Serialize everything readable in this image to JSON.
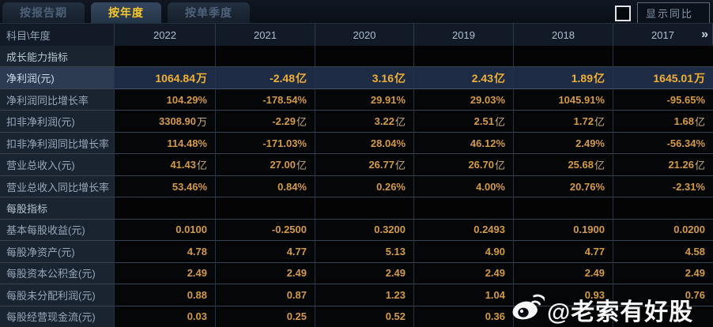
{
  "tabs": [
    {
      "label": "按报告期",
      "active": false
    },
    {
      "label": "按年度",
      "active": true
    },
    {
      "label": "按单季度",
      "active": false
    }
  ],
  "controls": {
    "show_yoy_label": "显示同比",
    "checkbox_checked": false
  },
  "table": {
    "corner_label": "科目\\年度",
    "years": [
      "2022",
      "2021",
      "2020",
      "2019",
      "2018",
      "2017"
    ],
    "more_icon": "»",
    "rows": [
      {
        "type": "section",
        "label": "成长能力指标",
        "values": [
          "",
          "",
          "",
          "",
          "",
          ""
        ]
      },
      {
        "type": "highlight",
        "label": "净利润(元)",
        "values": [
          "1064.84万",
          "-2.48亿",
          "3.16亿",
          "2.43亿",
          "1.89亿",
          "1645.01万"
        ]
      },
      {
        "type": "normal",
        "label": "净利润同比增长率",
        "values": [
          "104.29%",
          "-178.54%",
          "29.91%",
          "29.03%",
          "1045.91%",
          "-95.65%"
        ]
      },
      {
        "type": "normal",
        "label": "扣非净利润(元)",
        "values": [
          "3308.90万",
          "-2.29亿",
          "3.22亿",
          "2.51亿",
          "1.72亿",
          "1.68亿"
        ]
      },
      {
        "type": "normal",
        "label": "扣非净利润同比增长率",
        "values": [
          "114.48%",
          "-171.03%",
          "28.04%",
          "46.12%",
          "2.49%",
          "-56.34%"
        ]
      },
      {
        "type": "normal",
        "label": "营业总收入(元)",
        "values": [
          "41.43亿",
          "27.00亿",
          "26.77亿",
          "26.70亿",
          "25.68亿",
          "21.26亿"
        ]
      },
      {
        "type": "normal",
        "label": "营业总收入同比增长率",
        "values": [
          "53.46%",
          "0.84%",
          "0.26%",
          "4.00%",
          "20.76%",
          "-2.31%"
        ]
      },
      {
        "type": "section",
        "label": "每股指标",
        "values": [
          "",
          "",
          "",
          "",
          "",
          ""
        ]
      },
      {
        "type": "normal",
        "label": "基本每股收益(元)",
        "values": [
          "0.0100",
          "-0.2500",
          "0.3200",
          "0.2493",
          "0.1900",
          "0.0200"
        ]
      },
      {
        "type": "normal",
        "label": "每股净资产(元)",
        "values": [
          "4.78",
          "4.77",
          "5.13",
          "4.90",
          "4.77",
          "4.58"
        ]
      },
      {
        "type": "normal",
        "label": "每股资本公积金(元)",
        "values": [
          "2.49",
          "2.49",
          "2.49",
          "2.49",
          "2.49",
          "2.49"
        ]
      },
      {
        "type": "normal",
        "label": "每股未分配利润(元)",
        "values": [
          "0.88",
          "0.87",
          "1.23",
          "1.04",
          "0.93",
          "0.76"
        ]
      },
      {
        "type": "normal",
        "label": "每股经营现金流(元)",
        "values": [
          "0.03",
          "0.25",
          "0.52",
          "0.36",
          "",
          ""
        ]
      }
    ]
  },
  "watermark": {
    "icon": "weibo-icon",
    "text": "@老索有好股"
  },
  "colors": {
    "accent": "#d49a46",
    "accent-strong": "#f1b036",
    "tab-active": "#f6c72f",
    "highlight-row-bg": "#1d2b44",
    "label-col-bg": "#1a2330"
  }
}
